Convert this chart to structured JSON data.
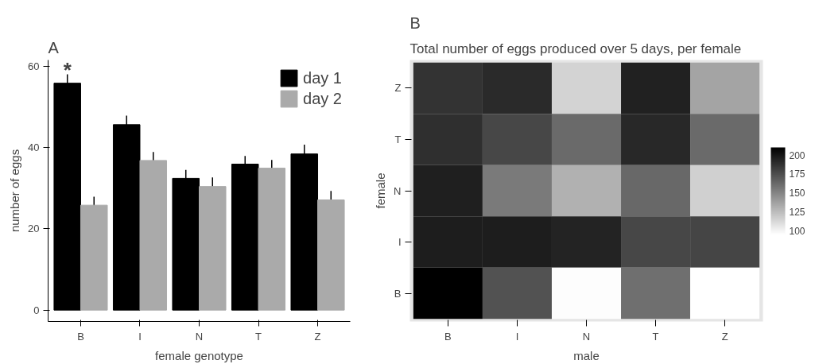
{
  "chart_data": [
    {
      "type": "bar",
      "title": "A",
      "xlabel": "female genotype",
      "ylabel": "number of eggs",
      "categories": [
        "B",
        "I",
        "N",
        "T",
        "Z"
      ],
      "series": [
        {
          "name": "day 1",
          "color": "#000000",
          "values": [
            55.8,
            45.6,
            32.4,
            35.9,
            38.4
          ],
          "errors": [
            2.2,
            2.2,
            2.1,
            2.0,
            2.3
          ]
        },
        {
          "name": "day 2",
          "color": "#aaaaaa",
          "values": [
            25.8,
            36.8,
            30.4,
            34.9,
            27.1
          ],
          "errors": [
            2.1,
            2.1,
            2.2,
            2.0,
            2.2
          ]
        }
      ],
      "ylim": [
        -2.8,
        61.5
      ],
      "yticks": [
        0,
        20,
        40,
        60
      ],
      "grid": false,
      "legend": "top right",
      "annotations": [
        "*"
      ]
    },
    {
      "type": "heatmap",
      "title": "B",
      "subtitle": "Total number of eggs produced over 5 days, per female",
      "xlabel": "male",
      "ylabel": "female",
      "categories": [
        "B",
        "I",
        "N",
        "T",
        "Z"
      ],
      "y_categories": [
        "Z",
        "T",
        "N",
        "I",
        "B"
      ],
      "cells": [
        [
          187,
          191,
          115,
          195,
          136
        ],
        [
          189,
          178,
          162,
          192,
          162
        ],
        [
          196,
          155,
          130,
          163,
          116
        ],
        [
          197,
          197,
          194,
          178,
          179
        ],
        [
          210,
          173,
          96,
          160,
          95
        ]
      ],
      "clim": [
        95,
        210
      ],
      "cticks": [
        100,
        125,
        150,
        175,
        200
      ]
    }
  ]
}
